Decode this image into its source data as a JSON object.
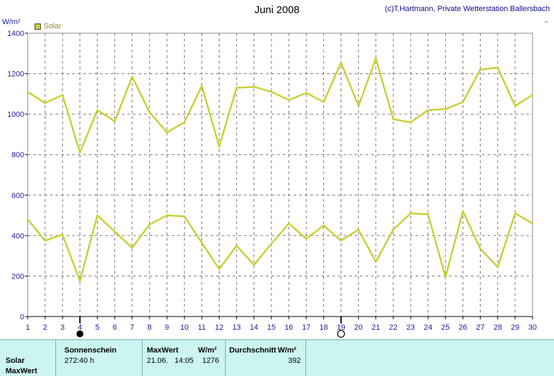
{
  "chart_data": {
    "type": "line",
    "title": "Juni 2008",
    "credit": "(c)T.Hartmann, Private Wetterstation Ballersbach",
    "ylabel": "W/m²",
    "ylim": [
      0,
      1400
    ],
    "yticks": [
      0,
      200,
      400,
      600,
      800,
      1000,
      1200,
      1400
    ],
    "grid": true,
    "legend_position": "top-left",
    "legend": "Solar",
    "color": "#c8d034",
    "x": [
      1,
      2,
      3,
      4,
      5,
      6,
      7,
      8,
      9,
      10,
      11,
      12,
      13,
      14,
      15,
      16,
      17,
      18,
      19,
      20,
      21,
      22,
      23,
      24,
      25,
      26,
      27,
      28,
      29,
      30
    ],
    "series": [
      {
        "values": [
          1110,
          1055,
          1095,
          810,
          1020,
          965,
          1185,
          1010,
          910,
          960,
          1140,
          840,
          1130,
          1135,
          1110,
          1070,
          1105,
          1060,
          1255,
          1040,
          1275,
          975,
          960,
          1020,
          1025,
          1060,
          1220,
          1230,
          1040,
          1095
        ]
      },
      {
        "values": [
          480,
          375,
          405,
          175,
          500,
          420,
          340,
          455,
          500,
          495,
          365,
          235,
          350,
          255,
          360,
          460,
          385,
          450,
          375,
          430,
          270,
          430,
          510,
          505,
          195,
          520,
          335,
          245,
          510,
          460
        ]
      }
    ],
    "markers": {
      "new_moon_day": 4,
      "full_moon_day": 19
    }
  },
  "footer": {
    "row_label_1": "Solar",
    "row_label_2": "MaxWert",
    "sonnenschein_header": "Sonnenschein",
    "sonnenschein_value": "272:40 h",
    "maxwert_header": "MaxWert",
    "maxwert_unit": "W/m²",
    "maxwert_date": "21.06.",
    "maxwert_time": "14:05",
    "maxwert_value": "1276",
    "durchschnitt_header": "Durchschnitt",
    "durchschnitt_unit": "W/m²",
    "durchschnitt_value": "392"
  }
}
